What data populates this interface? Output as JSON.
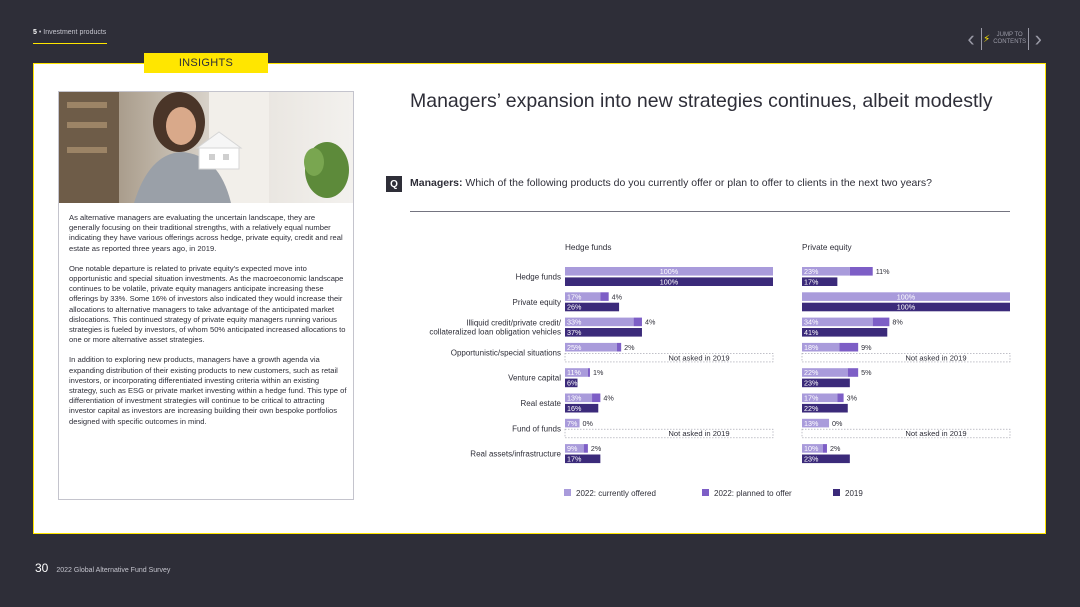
{
  "header": {
    "section_number": "5",
    "section_separator": "•",
    "section_label": "Investment products",
    "jump_label_line1": "JUMP TO",
    "jump_label_line2": "CONTENTS"
  },
  "insights": {
    "tab_label": "INSIGHTS",
    "paragraphs": [
      "As alternative managers are evaluating the uncertain landscape, they are generally focusing on their traditional strengths, with a relatively equal number indicating they have various offerings across hedge, private equity, credit and real estate as reported three years ago, in 2019.",
      "One notable departure is related to private equity's expected move into opportunistic and special situation investments. As the macroeconomic landscape continues to be volatile, private equity managers anticipate increasing these offerings by 33%. Some 16% of investors also indicated they would increase their allocations to alternative managers to take advantage of the anticipated market dislocations. This continued strategy of private equity managers running various strategies is fueled by investors, of whom 50% anticipated increased allocations to one or more alternative asset strategies.",
      "In addition to exploring new products, managers have a growth agenda via expanding distribution of their existing products to new customers, such as retail investors, or incorporating differentiated investing criteria within an existing strategy, such as ESG or private market investing within a hedge fund. This type of differentiation of investment strategies will continue to be critical to attracting investor capital as investors are increasing building their own bespoke portfolios designed with specific outcomes in mind."
    ]
  },
  "main": {
    "title": "Managers’ expansion into new strategies continues, albeit modestly",
    "question_badge": "Q",
    "question_lead": "Managers:",
    "question_text": " Which of the following products do you currently offer or plan to offer to clients in the next two years?"
  },
  "footer": {
    "page_number": "30",
    "publication": "2022 Global Alternative Fund Survey"
  },
  "chart_data": {
    "type": "bar",
    "orientation": "horizontal",
    "stacked_2022": true,
    "categories": [
      "Hedge funds",
      "Private equity",
      "Illiquid credit/private credit/ collateralized loan obligation vehicles",
      "Opportunistic/special situations",
      "Venture capital",
      "Real estate",
      "Fund of funds",
      "Real assets/infrastructure"
    ],
    "category_lines": [
      [
        "Hedge funds"
      ],
      [
        "Private equity"
      ],
      [
        "Illiquid credit/private credit/",
        "collateralized loan obligation vehicles"
      ],
      [
        "Opportunistic/special situations"
      ],
      [
        "Venture capital"
      ],
      [
        "Real estate"
      ],
      [
        "Fund of funds"
      ],
      [
        "Real assets/infrastructure"
      ]
    ],
    "not_asked_label": "Not asked in 2019",
    "value_unit": "%",
    "xlim": [
      0,
      100
    ],
    "colors": {
      "offered": "#a99bdb",
      "planned": "#7d5ec6",
      "y2019": "#3b2a7a",
      "offered_text": "#ffffff",
      "planned_text": "#2e2e38",
      "y2019_text": "#ffffff"
    },
    "legend": [
      {
        "key": "offered",
        "label": "2022: currently offered"
      },
      {
        "key": "planned",
        "label": "2022: planned to offer"
      },
      {
        "key": "y2019",
        "label": "2019"
      }
    ],
    "panels": [
      {
        "title": "Hedge funds",
        "series": [
          {
            "name": "2022: currently offered",
            "key": "offered",
            "values": [
              100,
              17,
              33,
              25,
              11,
              13,
              7,
              9
            ]
          },
          {
            "name": "2022: planned to offer",
            "key": "planned",
            "values": [
              null,
              4,
              4,
              2,
              1,
              4,
              0,
              2
            ]
          },
          {
            "name": "2019",
            "key": "y2019",
            "values": [
              100,
              26,
              37,
              null,
              6,
              16,
              null,
              17
            ]
          }
        ]
      },
      {
        "title": "Private equity",
        "series": [
          {
            "name": "2022: currently offered",
            "key": "offered",
            "values": [
              23,
              100,
              34,
              18,
              22,
              17,
              13,
              10
            ]
          },
          {
            "name": "2022: planned to offer",
            "key": "planned",
            "values": [
              11,
              null,
              8,
              9,
              5,
              3,
              0,
              2
            ]
          },
          {
            "name": "2019",
            "key": "y2019",
            "values": [
              17,
              100,
              41,
              null,
              23,
              22,
              null,
              23
            ]
          }
        ]
      }
    ]
  }
}
